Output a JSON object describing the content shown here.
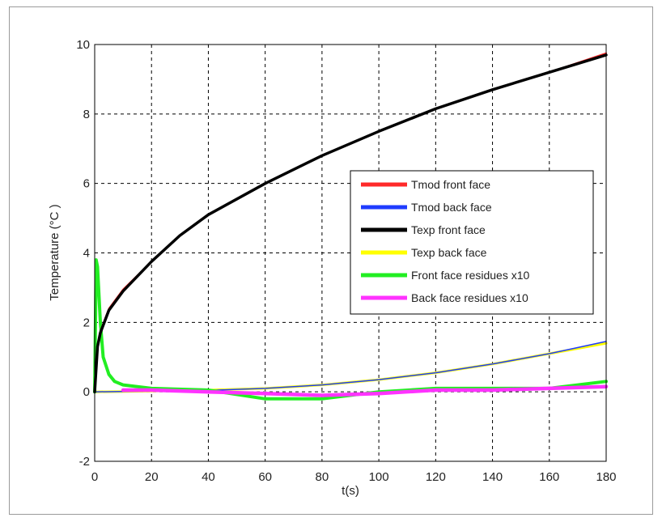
{
  "chart_data": {
    "type": "line",
    "xlabel": "t(s)",
    "ylabel": "Temperature (°C )",
    "xlim": [
      0,
      180
    ],
    "ylim": [
      -2,
      10
    ],
    "xticks": [
      "0",
      "20",
      "40",
      "60",
      "80",
      "100",
      "120",
      "140",
      "160",
      "180"
    ],
    "yticks": [
      "-2",
      "0",
      "2",
      "4",
      "6",
      "8",
      "10"
    ],
    "grid": true,
    "legend_position": "right-middle",
    "series": [
      {
        "name": "Tmod front face",
        "color": "#ff2a2a",
        "x": [
          0,
          1,
          2,
          5,
          10,
          20,
          30,
          40,
          60,
          80,
          100,
          120,
          140,
          160,
          180
        ],
        "y": [
          0,
          1.35,
          1.75,
          2.4,
          2.95,
          3.75,
          4.5,
          5.1,
          6.0,
          6.8,
          7.5,
          8.15,
          8.7,
          9.2,
          9.75
        ]
      },
      {
        "name": "Tmod back face",
        "color": "#1f3cff",
        "x": [
          0,
          20,
          40,
          60,
          80,
          100,
          120,
          140,
          160,
          180
        ],
        "y": [
          0,
          0.02,
          0.04,
          0.1,
          0.2,
          0.35,
          0.55,
          0.8,
          1.1,
          1.45
        ]
      },
      {
        "name": "Texp front face",
        "color": "#000000",
        "x": [
          0,
          1,
          2,
          5,
          10,
          20,
          30,
          40,
          60,
          80,
          100,
          120,
          140,
          160,
          180
        ],
        "y": [
          0,
          1.3,
          1.7,
          2.35,
          2.9,
          3.75,
          4.5,
          5.1,
          6.0,
          6.8,
          7.5,
          8.15,
          8.7,
          9.2,
          9.7
        ]
      },
      {
        "name": "Texp back face",
        "color": "#ffff00",
        "x": [
          0,
          20,
          40,
          60,
          80,
          100,
          120,
          140,
          160,
          180
        ],
        "y": [
          0,
          0.02,
          0.05,
          0.1,
          0.2,
          0.35,
          0.55,
          0.8,
          1.1,
          1.4
        ]
      },
      {
        "name": "Front face residues x10",
        "color": "#22ee22",
        "x": [
          0,
          0.5,
          1,
          2,
          3,
          5,
          7,
          10,
          20,
          40,
          60,
          80,
          100,
          120,
          140,
          160,
          180
        ],
        "y": [
          0,
          3.8,
          3.6,
          2.0,
          1.0,
          0.5,
          0.3,
          0.2,
          0.1,
          0.05,
          -0.2,
          -0.2,
          0,
          0.1,
          0.1,
          0.1,
          0.3
        ]
      },
      {
        "name": "Back face residues x10",
        "color": "#ff33ff",
        "x": [
          10,
          20,
          40,
          60,
          80,
          100,
          120,
          140,
          160,
          180
        ],
        "y": [
          0.05,
          0.05,
          0,
          -0.05,
          -0.1,
          -0.05,
          0.05,
          0.05,
          0.1,
          0.15
        ]
      }
    ]
  }
}
